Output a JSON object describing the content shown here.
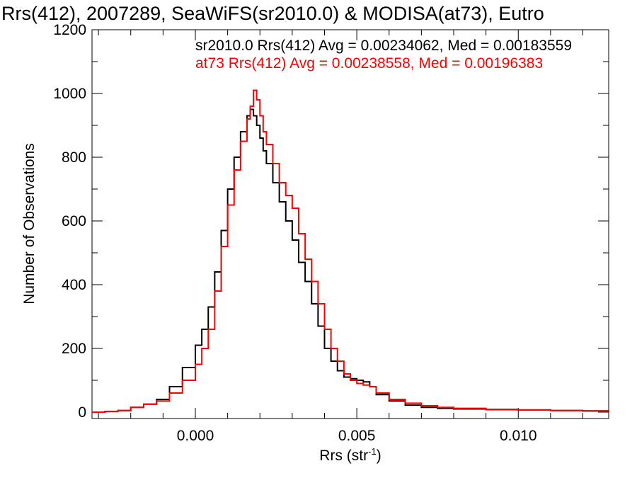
{
  "chart_data": {
    "type": "line",
    "title": "Rrs(412), 2007289, SeaWiFS(sr2010.0) & MODISA(at73), Eutro",
    "xlabel": "Rrs (str",
    "xlabel_sup": "-1",
    "xlabel_end": ")",
    "ylabel": "Number of Observations",
    "xlim": [
      -0.0032,
      0.0128
    ],
    "ylim": [
      -20,
      1200
    ],
    "xticks": [
      0.0,
      0.005,
      0.01
    ],
    "xtick_labels": [
      "0.000",
      "0.005",
      "0.010"
    ],
    "yticks": [
      0,
      200,
      400,
      600,
      800,
      1000,
      1200
    ],
    "ytick_labels": [
      "0",
      "200",
      "400",
      "600",
      "800",
      "1000",
      "1200"
    ],
    "grid": false,
    "annotations": [
      {
        "text": "sr2010.0 Rrs(412) Avg = 0.00234062, Med = 0.00183559",
        "color": "#000000"
      },
      {
        "text": "at73 Rrs(412) Avg = 0.00238558, Med = 0.00196383",
        "color": "#ff0000"
      }
    ],
    "series": [
      {
        "color": "#000000",
        "x": [
          -0.0032,
          -0.0028,
          -0.0024,
          -0.002,
          -0.0016,
          -0.0012,
          -0.0008,
          -0.0004,
          0.0,
          0.0002,
          0.0004,
          0.0006,
          0.0008,
          0.001,
          0.0012,
          0.0014,
          0.0016,
          0.0017,
          0.0018,
          0.0019,
          0.002,
          0.0021,
          0.0022,
          0.0024,
          0.0026,
          0.0028,
          0.003,
          0.0032,
          0.0034,
          0.0036,
          0.0038,
          0.004,
          0.0042,
          0.0044,
          0.0046,
          0.0048,
          0.005,
          0.0052,
          0.0054,
          0.0056,
          0.006,
          0.0065,
          0.007,
          0.0075,
          0.008,
          0.009,
          0.01,
          0.011,
          0.012,
          0.0128
        ],
        "values": [
          0,
          2,
          5,
          15,
          25,
          40,
          80,
          140,
          210,
          260,
          330,
          440,
          570,
          700,
          800,
          880,
          930,
          950,
          930,
          900,
          860,
          820,
          780,
          720,
          660,
          600,
          540,
          470,
          410,
          340,
          270,
          200,
          160,
          130,
          110,
          105,
          100,
          95,
          80,
          55,
          35,
          22,
          15,
          12,
          10,
          8,
          7,
          5,
          4,
          3
        ]
      },
      {
        "color": "#ff0000",
        "x": [
          -0.0032,
          -0.0028,
          -0.0024,
          -0.002,
          -0.0016,
          -0.0012,
          -0.0008,
          -0.0004,
          0.0,
          0.0002,
          0.0004,
          0.0006,
          0.0008,
          0.001,
          0.0012,
          0.0014,
          0.0016,
          0.0017,
          0.0018,
          0.0019,
          0.002,
          0.0021,
          0.0022,
          0.0024,
          0.0026,
          0.0028,
          0.003,
          0.0032,
          0.0034,
          0.0036,
          0.0038,
          0.004,
          0.0042,
          0.0044,
          0.0046,
          0.0048,
          0.005,
          0.0052,
          0.0054,
          0.0056,
          0.006,
          0.0065,
          0.007,
          0.0075,
          0.008,
          0.009,
          0.01,
          0.011,
          0.012,
          0.0128
        ],
        "values": [
          0,
          2,
          5,
          15,
          25,
          35,
          60,
          100,
          150,
          200,
          260,
          380,
          520,
          650,
          760,
          850,
          920,
          960,
          1010,
          980,
          930,
          880,
          840,
          780,
          720,
          680,
          640,
          560,
          480,
          410,
          340,
          260,
          200,
          160,
          120,
          100,
          90,
          85,
          80,
          60,
          40,
          28,
          20,
          15,
          12,
          9,
          7,
          5,
          4,
          3
        ]
      }
    ]
  }
}
